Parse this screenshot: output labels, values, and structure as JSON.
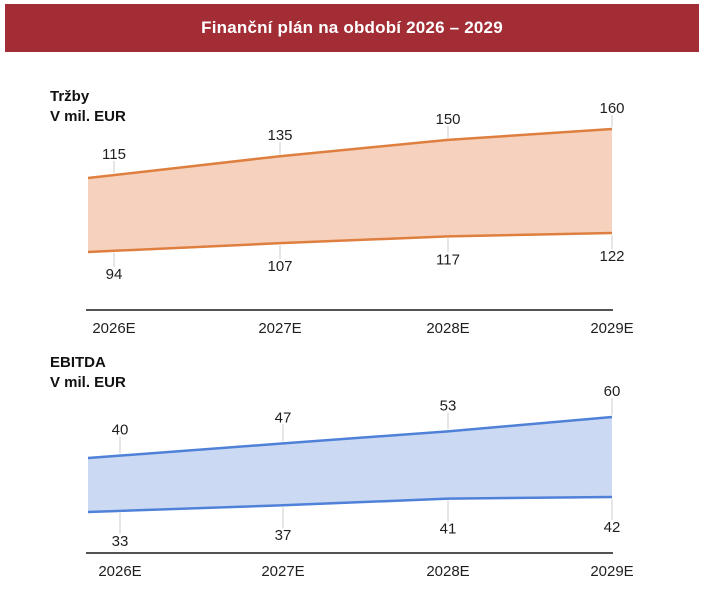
{
  "header": {
    "title": "Finanční plán na období 2026 – 2029",
    "bg_color": "#A32D35",
    "text_color": "#FFFFFF"
  },
  "chart_data": [
    {
      "type": "area",
      "variant": "range-band",
      "title": "Tržby",
      "subtitle": "V mil. EUR",
      "categories": [
        "2026E",
        "2027E",
        "2028E",
        "2029E"
      ],
      "series": [
        {
          "name": "upper",
          "values": [
            115,
            135,
            150,
            160
          ]
        },
        {
          "name": "lower",
          "values": [
            94,
            107,
            117,
            122
          ]
        }
      ],
      "colors": {
        "fill": "#F6D2BE",
        "stroke": "#DE7F3F"
      },
      "legend": "none",
      "grid": false
    },
    {
      "type": "area",
      "variant": "range-band",
      "title": "EBITDA",
      "subtitle": "V mil. EUR",
      "categories": [
        "2026E",
        "2027E",
        "2028E",
        "2029E"
      ],
      "series": [
        {
          "name": "upper",
          "values": [
            40,
            47,
            53,
            60
          ]
        },
        {
          "name": "lower",
          "values": [
            33,
            37,
            41,
            42
          ]
        }
      ],
      "colors": {
        "fill": "#CBD9F3",
        "stroke": "#4F81D8"
      },
      "legend": "none",
      "grid": false
    }
  ]
}
